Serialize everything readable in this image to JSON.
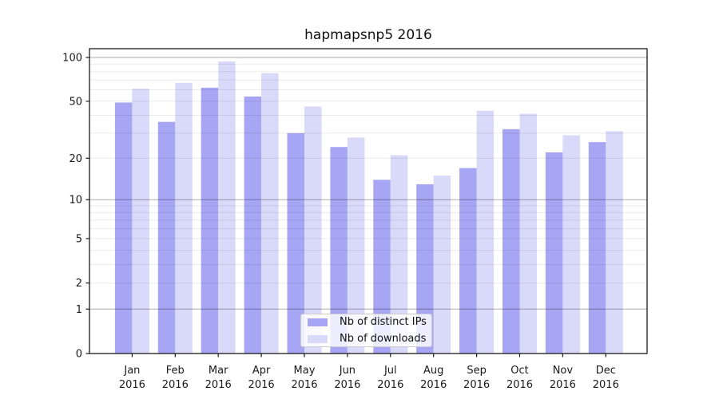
{
  "figure": {
    "background": "#ffffff"
  },
  "chart_data": {
    "type": "bar",
    "title": "hapmapsnp5 2016",
    "categories": [
      "Jan",
      "Feb",
      "Mar",
      "Apr",
      "May",
      "Jun",
      "Jul",
      "Aug",
      "Sep",
      "Oct",
      "Nov",
      "Dec"
    ],
    "x_tick_year": "2016",
    "series": [
      {
        "name": "Nb of distinct IPs",
        "color": "#a6a6f4",
        "values": [
          49,
          36,
          62,
          54,
          30,
          24,
          14,
          13,
          17,
          32,
          22,
          26
        ]
      },
      {
        "name": "Nb of downloads",
        "color": "#d9d9f9",
        "values": [
          61,
          67,
          94,
          78,
          46,
          28,
          21,
          15,
          43,
          41,
          29,
          31
        ]
      }
    ],
    "xlabel": "",
    "ylabel": "",
    "yscale": "log1p",
    "ylim": [
      0,
      113
    ],
    "yticks": [
      0,
      1,
      2,
      5,
      10,
      20,
      50,
      100
    ],
    "major_gridlines": [
      1,
      10,
      100
    ],
    "minor_gridlines": [
      2,
      3,
      4,
      5,
      6,
      7,
      8,
      9,
      20,
      30,
      40,
      50,
      60,
      70,
      80,
      90
    ],
    "grid": true,
    "legend_position": "lower center"
  },
  "colors": {
    "spine": "#1a1a1a",
    "tick_label": "#1a1a1a",
    "major_grid": "#000000",
    "major_grid_opacity": 0.33,
    "minor_grid": "#000000",
    "minor_grid_opacity": 0.08,
    "legend_bg": "rgba(255,255,255,0.8)",
    "legend_border": "#cccccc"
  }
}
